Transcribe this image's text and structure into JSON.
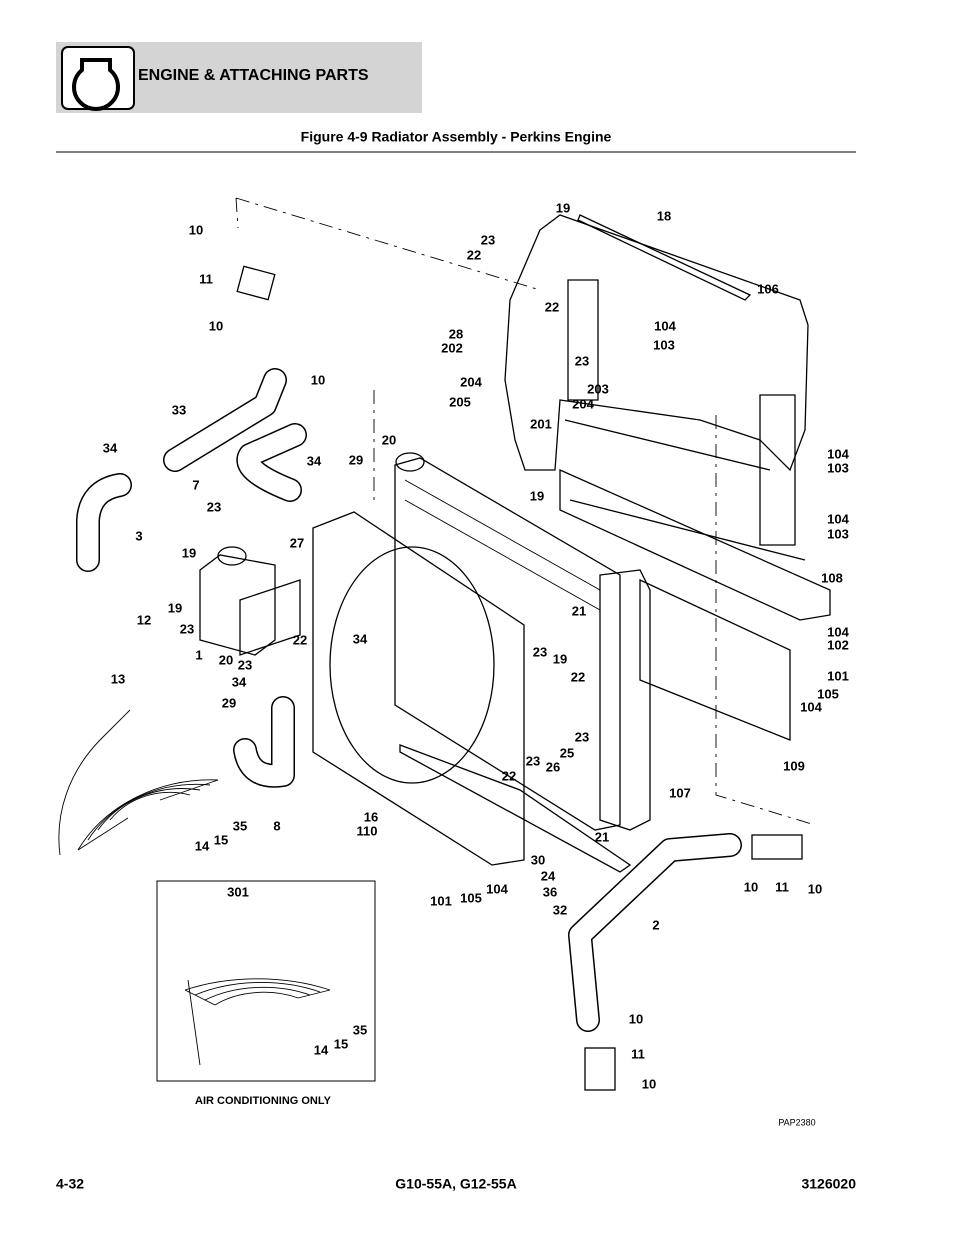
{
  "header": {
    "title": "ENGINE & ATTACHING PARTS"
  },
  "figure": {
    "title": "Figure 4-9 Radiator Assembly - Perkins Engine",
    "callouts": [
      "10",
      "11",
      "10",
      "10",
      "33",
      "34",
      "7",
      "34",
      "3",
      "23",
      "19",
      "27",
      "19",
      "23",
      "1",
      "20",
      "23",
      "22",
      "12",
      "13",
      "34",
      "29",
      "8",
      "35",
      "15",
      "14",
      "20",
      "29",
      "34",
      "16",
      "110",
      "101",
      "105",
      "104",
      "30",
      "24",
      "36",
      "32",
      "22",
      "23",
      "19",
      "22",
      "23",
      "26",
      "25",
      "23",
      "21",
      "21",
      "107",
      "19",
      "18",
      "23",
      "22",
      "106",
      "22",
      "104",
      "103",
      "28",
      "202",
      "23",
      "204",
      "203",
      "205",
      "204",
      "201",
      "19",
      "104",
      "103",
      "104",
      "103",
      "108",
      "104",
      "102",
      "101",
      "105",
      "104",
      "109",
      "10",
      "11",
      "10",
      "2",
      "10",
      "11",
      "10",
      "301",
      "35",
      "15",
      "14"
    ],
    "note": "AIR CONDITIONING ONLY",
    "drawing_id": "PAP2380"
  },
  "footer": {
    "page": "4-32",
    "models": "G10-55A, G12-55A",
    "doc_number": "3126020"
  }
}
